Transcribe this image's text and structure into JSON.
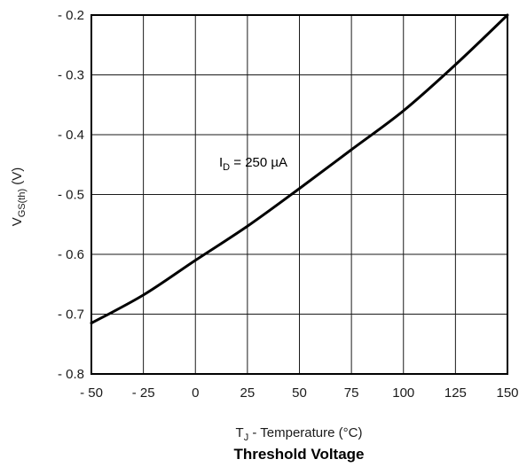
{
  "chart_data": {
    "type": "line",
    "title": "Threshold Voltage",
    "xlabel": {
      "main": "T",
      "sub": "J",
      "rest": " - Temperature (°C)"
    },
    "ylabel": {
      "main": "V",
      "sub": "GS(th)",
      "rest": " (V)"
    },
    "xlim": [
      -50,
      150
    ],
    "ylim": [
      -0.8,
      -0.2
    ],
    "x_ticks": [
      -50,
      -25,
      0,
      25,
      50,
      75,
      100,
      125,
      150
    ],
    "x_tick_labels": [
      "- 50",
      "- 25",
      "0",
      "25",
      "50",
      "75",
      "100",
      "125",
      "150"
    ],
    "y_ticks": [
      -0.2,
      -0.3,
      -0.4,
      -0.5,
      -0.6,
      -0.7,
      -0.8
    ],
    "y_tick_labels": [
      "- 0.2",
      "- 0.3",
      "- 0.4",
      "- 0.5",
      "- 0.6",
      "- 0.7",
      "- 0.8"
    ],
    "grid": true,
    "series": [
      {
        "x": [
          -50,
          -25,
          0,
          25,
          50,
          75,
          100,
          125,
          150
        ],
        "y": [
          -0.715,
          -0.668,
          -0.61,
          -0.553,
          -0.49,
          -0.425,
          -0.36,
          -0.283,
          -0.2
        ]
      }
    ],
    "annotation": {
      "main": "I",
      "sub": "D",
      "rest": " = 250 µA",
      "x": 5,
      "y": -0.445
    },
    "line_color": "#000000",
    "grid_color": "#1a1a1a"
  }
}
